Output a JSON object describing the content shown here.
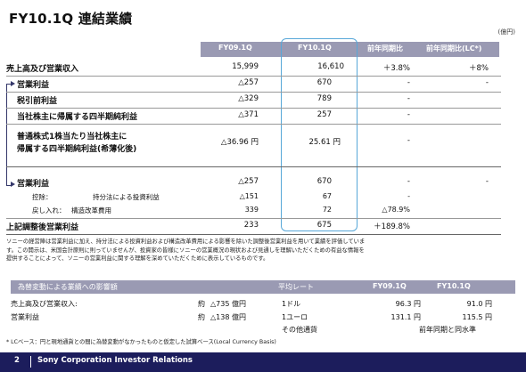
{
  "title": "FY10.1Q 連結業績",
  "unit": "(億円)",
  "header": {
    "col1": "FY09.1Q",
    "col2": "FY10.1Q",
    "col3": "前年同期比",
    "col4": "前年同期比(LC*)"
  },
  "rows": {
    "sales": {
      "label": "売上高及び営業収入",
      "fy09": "15,999",
      "fy10": "16,610",
      "yoy": "＋3.8%",
      "lc": "＋8%"
    },
    "op": {
      "label": "営業利益",
      "fy09": "△257",
      "fy10": "670",
      "yoy": "-",
      "lc": "-"
    },
    "pretax": {
      "label": "税引前利益",
      "fy09": "△329",
      "fy10": "789",
      "yoy": "-"
    },
    "net": {
      "label": "当社株主に帰属する四半期純利益",
      "fy09": "△371",
      "fy10": "257",
      "yoy": "-"
    },
    "eps": {
      "label1": "普通株式1株当たり当社株主に",
      "label2": "帰属する四半期純利益(希薄化後)",
      "fy09": "△36.96 円",
      "fy10": "25.61 円",
      "yoy": "-"
    },
    "op2": {
      "label": "営業利益",
      "fy09": "△257",
      "fy10": "670",
      "yoy": "-",
      "lc": "-"
    },
    "deduct": {
      "label1": "控除：",
      "label2": "持分法による投資利益",
      "fy09": "△151",
      "fy10": "67",
      "yoy": "-"
    },
    "addback": {
      "label1": "戻し入れ：",
      "label2": "構造改革費用",
      "fy09": "339",
      "fy10": "72",
      "yoy": "△78.9%"
    },
    "adjusted": {
      "label": "上記調整後営業利益",
      "fy09": "233",
      "fy10": "675",
      "yoy": "＋189.8%"
    }
  },
  "note": [
    "ソニーの経営陣は営業利益に加え、持分法による投資利益および構造改革費用による影響を除いた調整後営業利益を用いて業績を評価していま",
    "す。この開示は、米国会計原則に則っていませんが、投資家の皆様にソニーの営業概況の現状および見通しを理解いただくための有益な情報を",
    "提供することによって、ソニーの営業利益に関する理解を深めていただくために表示しているものです。"
  ],
  "fx": {
    "header": {
      "title": "為替変動による業績への影響額",
      "rate": "平均レート",
      "fy09": "FY09.1Q",
      "fy10": "FY10.1Q"
    },
    "rows": [
      {
        "label": "売上高及び営業収入:",
        "approx": "約",
        "amount": "△735 億円",
        "currency": "1ドル",
        "fy09": "96.3 円",
        "fy10": "91.0 円"
      },
      {
        "label": "営業利益",
        "approx": "約",
        "amount": "△138 億円",
        "currency": "1ユーロ",
        "fy09": "131.1 円",
        "fy10": "115.5 円"
      }
    ],
    "other": "その他通貨",
    "other_note": "前年同期と同水準"
  },
  "footnote": "* LCベース：円と現地通貨との間に為替変動がなかったものと仮定した試算ベース(Local Currency Basis)",
  "footer": {
    "page": "2",
    "company": "Sony Corporation Investor Relations"
  },
  "colors": {
    "header_bg": "#9a9ab3",
    "footer_bg": "#1c1d5c",
    "highlight": "#57a7d8",
    "bracket": "#34376a"
  }
}
